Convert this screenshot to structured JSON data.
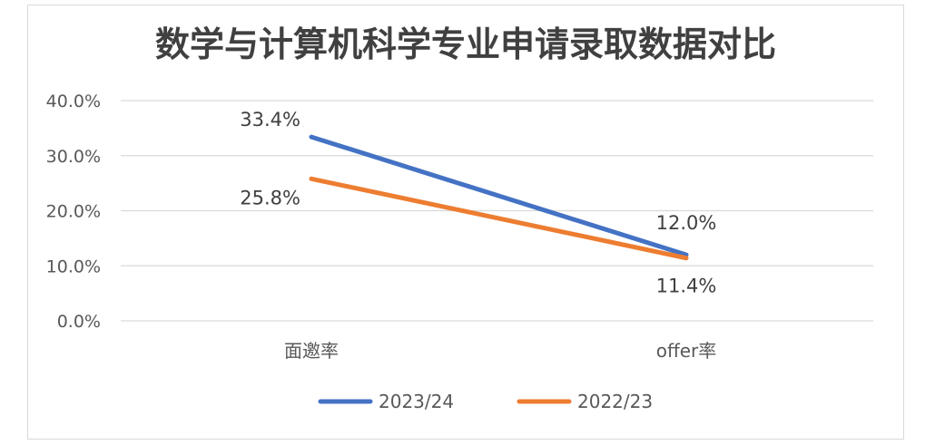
{
  "chart_data": {
    "type": "line",
    "title": "数学与计算机科学专业申请录取数据对比",
    "categories": [
      "面邀率",
      "offer率"
    ],
    "series": [
      {
        "name": "2023/24",
        "values": [
          33.4,
          12.0
        ],
        "labels": [
          "33.4%",
          "12.0%"
        ],
        "color": "#4472c4"
      },
      {
        "name": "2022/23",
        "values": [
          25.8,
          11.4
        ],
        "labels": [
          "25.8%",
          "11.4%"
        ],
        "color": "#ed7d31"
      }
    ],
    "ylim": [
      0,
      40
    ],
    "yticks": [
      "0.0%",
      "10.0%",
      "20.0%",
      "30.0%",
      "40.0%"
    ],
    "grid": true,
    "legend": "bottom"
  }
}
